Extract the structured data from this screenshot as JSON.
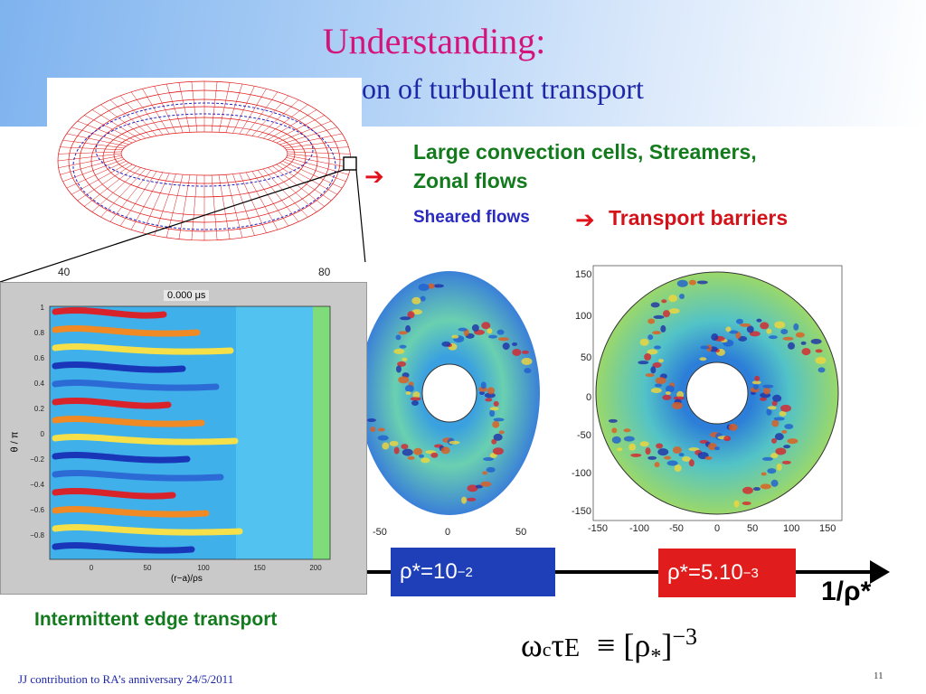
{
  "title": {
    "line1": "Understanding:",
    "line2": "on of turbulent transport"
  },
  "bullets": {
    "line1": "Large convection cells, Streamers,",
    "line2": "Zonal flows",
    "sheared": "Sheared flows",
    "barriers": "Transport barriers"
  },
  "left_plot": {
    "title": "0.000 μs",
    "ylabel": "θ / π",
    "xlabel": "(r−a)/ρs",
    "yticks": [
      "1",
      "0.8",
      "0.6",
      "0.4",
      "0.2",
      "0",
      "−0.2",
      "−0.4",
      "−0.6",
      "−0.8"
    ],
    "xticks": [
      "0",
      "50",
      "100",
      "150",
      "200"
    ],
    "behind_ticks": [
      "40",
      "80"
    ]
  },
  "mid_plot": {
    "xticks": [
      "-50",
      "0",
      "50"
    ]
  },
  "right_plot": {
    "yticks": [
      "150",
      "100",
      "50",
      "0",
      "-50",
      "-100",
      "-150"
    ],
    "xticks": [
      "-150",
      "-100",
      "-50",
      "0",
      "50",
      "100",
      "150"
    ]
  },
  "scale_boxes": {
    "blue": "ρ*=10",
    "blue_exp": "−2",
    "red": "ρ*=5.10",
    "red_exp": "−3",
    "axis": "1/ρ*"
  },
  "caption": "Intermittent edge transport",
  "formula": {
    "omega": "ω",
    "c": "c",
    "tau": "τ",
    "E": "E",
    "equiv": "≡",
    "open": "[ρ",
    "sub": "*",
    "close": "]",
    "exp": "−3"
  },
  "footer": "JJ contribution to RA’s anniversary 24/5/2011",
  "page_number": "11",
  "colors": {
    "title": "#d4147b",
    "green": "#137b1d",
    "red": "#d4121a",
    "blue": "#2a2ac0",
    "box_blue": "#1e3fb8",
    "box_red": "#e01c1c"
  }
}
